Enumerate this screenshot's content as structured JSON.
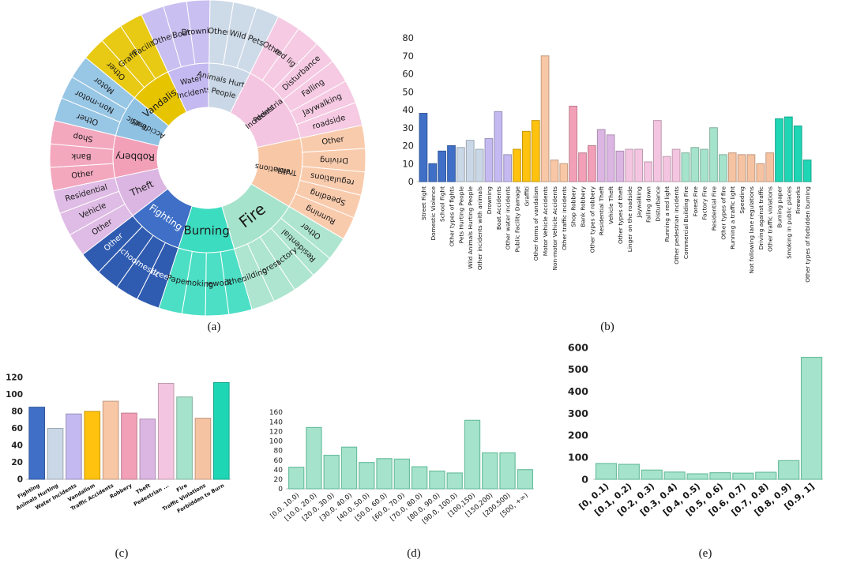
{
  "palette": {
    "fighting": "#3f6fc6",
    "animals": "#c9d7e6",
    "water": "#c4b9f0",
    "vandalism": "#ffc20e",
    "traffic": "#f8c7a6",
    "robbery": "#f2a0b8",
    "theft": "#dcb6e3",
    "pedestrian": "#f4c5e0",
    "fire": "#a6e3cc",
    "violations": "#f6c3a2",
    "forbidden": "#1fd6b4",
    "histogram": "#a6e3cc"
  },
  "chart_data": [
    {
      "id": "a",
      "type": "sunburst",
      "label": "(a)",
      "inner": [
        {
          "name": "Fighting",
          "color": "#3f6fc6",
          "text": "#ffffff"
        },
        {
          "name": "Theft",
          "color": "#dcb6e3",
          "text": "#1a1a1a"
        },
        {
          "name": "Robbery",
          "color": "#f2a0b8",
          "text": "#1a1a1a"
        },
        {
          "name": "Traffic Accidents",
          "color": "#8fc1e3",
          "text": "#1a1a1a"
        },
        {
          "name": "Vandalism",
          "color": "#e6c400",
          "text": "#1a1a1a"
        },
        {
          "name": "Water Incidents",
          "color": "#c4b9f0",
          "text": "#1a1a1a"
        },
        {
          "name": "Animals Hurting People",
          "color": "#c9d7e6",
          "text": "#1a1a1a"
        },
        {
          "name": "Pedestrian Incidents",
          "color": "#f4c5e0",
          "text": "#1a1a1a"
        },
        {
          "name": "Traffic Violations",
          "color": "#f8c7a6",
          "text": "#1a1a1a"
        },
        {
          "name": "Fire",
          "color": "#a6e3cc",
          "text": "#1a1a1a"
        },
        {
          "name": "Burning",
          "color": "#3cdcc0",
          "text": "#1a1a1a"
        }
      ],
      "outer": [
        {
          "name": "Street",
          "parent": "Fighting"
        },
        {
          "name": "Domestic",
          "parent": "Fighting"
        },
        {
          "name": "School",
          "parent": "Fighting"
        },
        {
          "name": "Other",
          "parent": "Fighting"
        },
        {
          "name": "Other",
          "parent": "Theft"
        },
        {
          "name": "Vehicle",
          "parent": "Theft"
        },
        {
          "name": "Residential",
          "parent": "Theft"
        },
        {
          "name": "Other",
          "parent": "Robbery"
        },
        {
          "name": "Bank",
          "parent": "Robbery"
        },
        {
          "name": "Shop",
          "parent": "Robbery"
        },
        {
          "name": "Other",
          "parent": "Traffic Accidents"
        },
        {
          "name": "Non-motor",
          "parent": "Traffic Accidents"
        },
        {
          "name": "Motor",
          "parent": "Traffic Accidents"
        },
        {
          "name": "Other",
          "parent": "Vandalism"
        },
        {
          "name": "Graffiti",
          "parent": "Vandalism"
        },
        {
          "name": "Facility",
          "parent": "Vandalism"
        },
        {
          "name": "Other",
          "parent": "Water Incidents"
        },
        {
          "name": "Boat",
          "parent": "Water Incidents"
        },
        {
          "name": "Drowning",
          "parent": "Water Incidents"
        },
        {
          "name": "Other",
          "parent": "Animals Hurting People"
        },
        {
          "name": "Wild",
          "parent": "Animals Hurting People"
        },
        {
          "name": "Pets",
          "parent": "Animals Hurting People"
        },
        {
          "name": "Other",
          "parent": "Pedestrian Incidents"
        },
        {
          "name": "red light",
          "parent": "Pedestrian Incidents"
        },
        {
          "name": "Disturbance",
          "parent": "Pedestrian Incidents"
        },
        {
          "name": "Falling",
          "parent": "Pedestrian Incidents"
        },
        {
          "name": "Jaywalking",
          "parent": "Pedestrian Incidents"
        },
        {
          "name": "roadside",
          "parent": "Pedestrian Incidents"
        },
        {
          "name": "Other",
          "parent": "Traffic Violations"
        },
        {
          "name": "Driving",
          "parent": "Traffic Violations"
        },
        {
          "name": "regulations",
          "parent": "Traffic Violations"
        },
        {
          "name": "Speeding",
          "parent": "Traffic Violations"
        },
        {
          "name": "Running",
          "parent": "Traffic Violations"
        },
        {
          "name": "Other",
          "parent": "Fire"
        },
        {
          "name": "Residential",
          "parent": "Fire"
        },
        {
          "name": "Factory",
          "parent": "Fire"
        },
        {
          "name": "Forest",
          "parent": "Fire"
        },
        {
          "name": "Building",
          "parent": "Fire"
        },
        {
          "name": "Other",
          "parent": "Burning"
        },
        {
          "name": "Firework",
          "parent": "Burning"
        },
        {
          "name": "Smoking",
          "parent": "Burning"
        },
        {
          "name": "Paper",
          "parent": "Burning"
        }
      ]
    },
    {
      "id": "b",
      "type": "bar",
      "label": "(b)",
      "ylim": [
        0,
        80
      ],
      "yticks": [
        0,
        10,
        20,
        30,
        40,
        50,
        60,
        70,
        80
      ],
      "categories": [
        "Street Fight",
        "Domestic Violence",
        "School Fight",
        "Other types of fights",
        "Pets Hurting People",
        "Wild Animals Hurting People",
        "Other incidents with animals",
        "Drowning",
        "Boat Accidents",
        "Other water incidents",
        "Public Facility Damage",
        "Graffiti",
        "Other forms of vandalism",
        "Motor Vehicle Accidents",
        "Non-motor Vehicle Accidents",
        "Other traffic incidents",
        "Shop Robbery",
        "Bank Robbery",
        "Other types of robbery",
        "Residential Theft",
        "Vehicle Theft",
        "Other types of theft",
        "Linger on the roadside",
        "Jaywalking",
        "Falling down",
        "Disturbance",
        "Running a red light",
        "Other pedestrian incidents",
        "Commercial Building Fire",
        "Forest Fire",
        "Factory Fire",
        "Residential Fire",
        "Other types of fire",
        "Running a traffic light",
        "Speeding",
        "Not following lane regulations",
        "Driving against traffic",
        "Other traffic violations",
        "Burning paper",
        "Smoking in public places",
        "Fireworks",
        "Other types of forbidden burning"
      ],
      "values": [
        38,
        10,
        17,
        20,
        19,
        23,
        18,
        24,
        39,
        15,
        18,
        28,
        34,
        70,
        12,
        10,
        42,
        16,
        20,
        29,
        26,
        17,
        18,
        18,
        11,
        34,
        14,
        18,
        16,
        19,
        18,
        30,
        15,
        16,
        15,
        15,
        10,
        16,
        35,
        36,
        31,
        12
      ],
      "groups": [
        "fighting",
        "fighting",
        "fighting",
        "fighting",
        "animals",
        "animals",
        "animals",
        "water",
        "water",
        "water",
        "vandalism",
        "vandalism",
        "vandalism",
        "traffic",
        "traffic",
        "traffic",
        "robbery",
        "robbery",
        "robbery",
        "theft",
        "theft",
        "theft",
        "pedestrian",
        "pedestrian",
        "pedestrian",
        "pedestrian",
        "pedestrian",
        "pedestrian",
        "fire",
        "fire",
        "fire",
        "fire",
        "fire",
        "violations",
        "violations",
        "violations",
        "violations",
        "violations",
        "forbidden",
        "forbidden",
        "forbidden",
        "forbidden"
      ]
    },
    {
      "id": "c",
      "type": "bar",
      "label": "(c)",
      "ylim": [
        0,
        120
      ],
      "yticks": [
        0,
        20,
        40,
        60,
        80,
        100,
        120
      ],
      "categories": [
        "Fighting",
        "Animals Hurting",
        "Water Incidents",
        "Vandalism",
        "Traffic Accidents",
        "Robbery",
        "Theft",
        "Pedestrian ...",
        "Fire",
        "Traffic Violations",
        "Forbidden to Burn"
      ],
      "values": [
        85,
        60,
        77,
        80,
        92,
        78,
        71,
        113,
        97,
        72,
        114
      ],
      "groups": [
        "fighting",
        "animals",
        "water",
        "vandalism",
        "traffic",
        "robbery",
        "theft",
        "pedestrian",
        "fire",
        "violations",
        "forbidden"
      ]
    },
    {
      "id": "d",
      "type": "bar",
      "label": "(d)",
      "ylim": [
        0,
        160
      ],
      "yticks": [
        0,
        20,
        40,
        60,
        80,
        100,
        120,
        140,
        160
      ],
      "categories": [
        "[0.0, 10.0)",
        "[10.0, 20.0)",
        "[20.0, 30.0)",
        "[30.0, 40.0)",
        "[40.0, 50.0)",
        "[50.0, 60.0)",
        "[60.0, 70.0)",
        "[70.0, 80.0)",
        "[80.0, 90.0)",
        "[90.0, 100.0)",
        "[100,150)",
        "[150,200)",
        "[200,500)",
        "[500, +∞)"
      ],
      "values": [
        45,
        128,
        70,
        87,
        55,
        63,
        62,
        46,
        37,
        33,
        143,
        75,
        75,
        40
      ]
    },
    {
      "id": "e",
      "type": "bar",
      "label": "(e)",
      "ylim": [
        0,
        600
      ],
      "yticks": [
        0,
        100,
        200,
        300,
        400,
        500,
        600
      ],
      "categories": [
        "[0, 0.1)",
        "[0.1, 0.2)",
        "[0.2, 0.3)",
        "[0.3, 0.4)",
        "[0.4, 0.5)",
        "[0.5, 0.6)",
        "[0.6, 0.7)",
        "[0.7, 0.8)",
        "[0.8, 0.9)",
        "[0.9, 1]"
      ],
      "values": [
        72,
        68,
        42,
        33,
        25,
        30,
        28,
        32,
        85,
        555
      ]
    }
  ]
}
